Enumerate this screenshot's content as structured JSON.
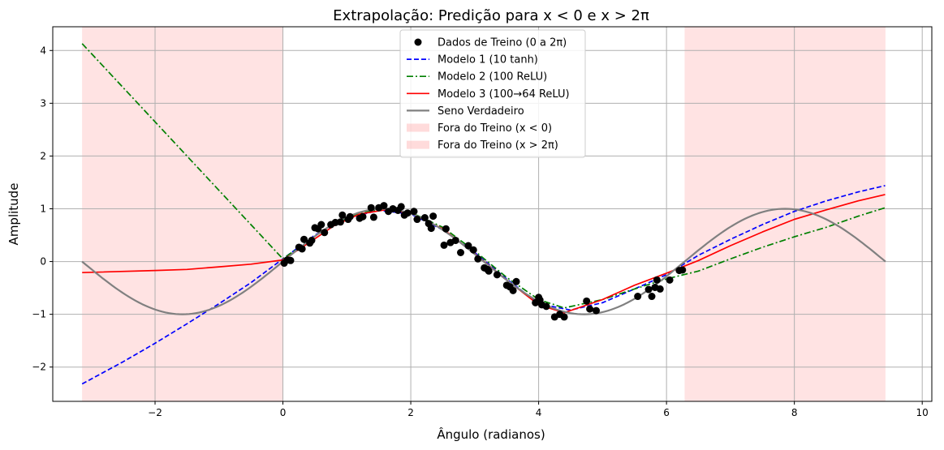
{
  "chart_data": {
    "type": "line",
    "title": "Extrapolação: Predição para x < 0 e x > 2π",
    "xlabel": "Ângulo (radianos)",
    "ylabel": "Amplitude",
    "xlim": [
      -3.6,
      10.15
    ],
    "ylim": [
      -2.65,
      4.45
    ],
    "xticks": [
      -2,
      0,
      2,
      4,
      6,
      8,
      10
    ],
    "yticks": [
      -2,
      -1,
      0,
      1,
      2,
      3,
      4
    ],
    "xtick_labels": [
      "−2",
      "0",
      "2",
      "4",
      "6",
      "8",
      "10"
    ],
    "ytick_labels": [
      "−2",
      "−1",
      "0",
      "1",
      "2",
      "3",
      "4"
    ],
    "grid": true,
    "legend_position": "top-center",
    "shaded_regions": [
      {
        "name": "Fora do Treino (x < 0)",
        "x_range": [
          -3.1416,
          0
        ],
        "color": "#ff9999"
      },
      {
        "name": "Fora do Treino (x > 2π)",
        "x_range": [
          6.2832,
          9.4248
        ],
        "color": "#ff9999"
      }
    ],
    "scatter": {
      "name": "Dados de Treino (0 a 2π)",
      "color": "#000000",
      "points": [
        [
          0.02,
          -0.03
        ],
        [
          0.07,
          0.03
        ],
        [
          0.12,
          0.02
        ],
        [
          0.25,
          0.27
        ],
        [
          0.3,
          0.24
        ],
        [
          0.33,
          0.42
        ],
        [
          0.42,
          0.35
        ],
        [
          0.45,
          0.4
        ],
        [
          0.5,
          0.64
        ],
        [
          0.55,
          0.62
        ],
        [
          0.6,
          0.7
        ],
        [
          0.65,
          0.55
        ],
        [
          0.75,
          0.7
        ],
        [
          0.82,
          0.74
        ],
        [
          0.9,
          0.75
        ],
        [
          0.93,
          0.88
        ],
        [
          1.02,
          0.8
        ],
        [
          1.05,
          0.85
        ],
        [
          1.2,
          0.82
        ],
        [
          1.25,
          0.85
        ],
        [
          1.38,
          1.02
        ],
        [
          1.42,
          0.84
        ],
        [
          1.5,
          1.02
        ],
        [
          1.58,
          1.06
        ],
        [
          1.65,
          0.95
        ],
        [
          1.72,
          1.0
        ],
        [
          1.8,
          0.97
        ],
        [
          1.85,
          1.04
        ],
        [
          1.9,
          0.88
        ],
        [
          1.95,
          0.92
        ],
        [
          2.05,
          0.95
        ],
        [
          2.1,
          0.8
        ],
        [
          2.22,
          0.83
        ],
        [
          2.28,
          0.72
        ],
        [
          2.32,
          0.63
        ],
        [
          2.35,
          0.86
        ],
        [
          2.52,
          0.31
        ],
        [
          2.55,
          0.62
        ],
        [
          2.62,
          0.36
        ],
        [
          2.7,
          0.4
        ],
        [
          2.78,
          0.17
        ],
        [
          2.9,
          0.3
        ],
        [
          2.98,
          0.22
        ],
        [
          3.05,
          0.05
        ],
        [
          3.15,
          -0.12
        ],
        [
          3.2,
          -0.15
        ],
        [
          3.22,
          -0.18
        ],
        [
          3.35,
          -0.25
        ],
        [
          3.5,
          -0.45
        ],
        [
          3.55,
          -0.48
        ],
        [
          3.6,
          -0.55
        ],
        [
          3.65,
          -0.38
        ],
        [
          3.95,
          -0.78
        ],
        [
          4.0,
          -0.68
        ],
        [
          4.02,
          -0.73
        ],
        [
          4.05,
          -0.82
        ],
        [
          4.12,
          -0.85
        ],
        [
          4.25,
          -1.05
        ],
        [
          4.33,
          -1.0
        ],
        [
          4.4,
          -1.05
        ],
        [
          4.75,
          -0.75
        ],
        [
          4.8,
          -0.9
        ],
        [
          4.9,
          -0.93
        ],
        [
          5.55,
          -0.66
        ],
        [
          5.72,
          -0.53
        ],
        [
          5.77,
          -0.66
        ],
        [
          5.82,
          -0.49
        ],
        [
          5.85,
          -0.35
        ],
        [
          5.9,
          -0.52
        ],
        [
          6.05,
          -0.35
        ],
        [
          6.2,
          -0.17
        ],
        [
          6.25,
          -0.16
        ]
      ]
    },
    "series": [
      {
        "name": "Modelo 1 (10 tanh)",
        "color": "#0000ff",
        "style": "dashed",
        "x": [
          -3.14,
          -2.5,
          -2.0,
          -1.5,
          -1.0,
          -0.5,
          0.0,
          0.5,
          1.0,
          1.5,
          2.0,
          2.5,
          3.0,
          3.5,
          4.0,
          4.5,
          5.0,
          5.5,
          6.0,
          6.5,
          7.0,
          7.5,
          8.0,
          8.5,
          9.0,
          9.42
        ],
        "values": [
          -2.32,
          -1.9,
          -1.55,
          -1.18,
          -0.8,
          -0.4,
          0.05,
          0.5,
          0.82,
          0.97,
          0.9,
          0.6,
          0.17,
          -0.33,
          -0.8,
          -0.92,
          -0.78,
          -0.52,
          -0.25,
          0.12,
          0.42,
          0.7,
          0.95,
          1.15,
          1.32,
          1.44
        ]
      },
      {
        "name": "Modelo 2 (100 ReLU)",
        "color": "#008000",
        "style": "dashdot",
        "x": [
          -3.14,
          0.0,
          0.4,
          0.8,
          1.2,
          1.6,
          2.0,
          2.5,
          3.0,
          3.5,
          4.0,
          4.4,
          5.0,
          5.5,
          6.0,
          6.5,
          7.0,
          7.5,
          8.0,
          8.5,
          9.0,
          9.42
        ],
        "values": [
          4.13,
          0.05,
          0.4,
          0.72,
          0.92,
          1.0,
          0.93,
          0.65,
          0.2,
          -0.3,
          -0.72,
          -0.88,
          -0.72,
          -0.52,
          -0.33,
          -0.18,
          0.05,
          0.27,
          0.47,
          0.65,
          0.86,
          1.02
        ]
      },
      {
        "name": "Modelo 3 (100→64 ReLU)",
        "color": "#ff0000",
        "style": "solid",
        "x": [
          -3.14,
          -2.0,
          -1.5,
          -1.0,
          -0.5,
          0.0,
          0.4,
          0.8,
          1.2,
          1.6,
          2.0,
          2.5,
          3.0,
          3.5,
          4.0,
          4.4,
          5.0,
          5.5,
          6.0,
          6.5,
          7.0,
          7.5,
          8.0,
          8.5,
          9.0,
          9.42
        ],
        "values": [
          -0.21,
          -0.17,
          -0.15,
          -0.1,
          -0.05,
          0.03,
          0.35,
          0.68,
          0.9,
          0.98,
          0.92,
          0.62,
          0.15,
          -0.35,
          -0.82,
          -0.97,
          -0.72,
          -0.45,
          -0.22,
          0.02,
          0.3,
          0.56,
          0.8,
          0.98,
          1.15,
          1.27
        ]
      },
      {
        "name": "Seno Verdadeiro",
        "color": "#808080",
        "style": "solid",
        "function": "sin",
        "x_range": [
          -3.1416,
          9.4248
        ]
      }
    ]
  }
}
